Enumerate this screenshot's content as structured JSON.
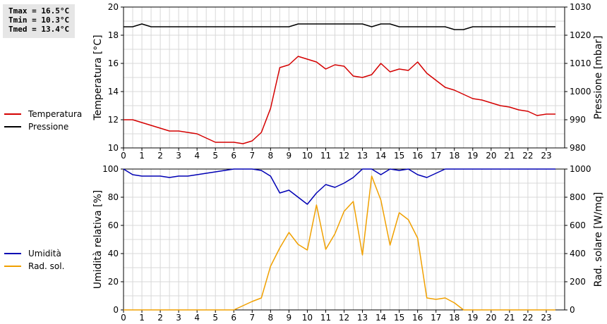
{
  "stats": {
    "tmax": "Tmax = 16.5°C",
    "tmin": "Tmin = 10.3°C",
    "tmed": "Tmed = 13.4°C"
  },
  "colors": {
    "temperature": "#d40000",
    "pressure": "#000000",
    "humidity": "#0000b4",
    "solar": "#f0a000",
    "grid": "#d8d8d8"
  },
  "chart_data": [
    {
      "type": "line",
      "xlim": [
        0,
        24
      ],
      "x_ticks": [
        "0",
        "1",
        "2",
        "3",
        "4",
        "5",
        "6",
        "7",
        "8",
        "9",
        "10",
        "11",
        "12",
        "13",
        "14",
        "15",
        "16",
        "17",
        "18",
        "19",
        "20",
        "21",
        "22",
        "23"
      ],
      "ylabel": "Temperatura [°C]",
      "ylim": [
        10,
        20
      ],
      "y_ticks": [
        "10",
        "12",
        "14",
        "16",
        "18",
        "20"
      ],
      "y2label": "Pressione [mbar]",
      "y2lim": [
        980,
        1030
      ],
      "y2_ticks": [
        "980",
        "990",
        "1000",
        "1010",
        "1020",
        "1030"
      ],
      "grid": true,
      "legend_position": "left",
      "series": [
        {
          "name": "Temperatura",
          "axis": "left",
          "x": [
            0,
            0.5,
            1,
            1.5,
            2,
            2.5,
            3,
            3.5,
            4,
            4.5,
            5,
            5.5,
            6,
            6.5,
            7,
            7.5,
            8,
            8.5,
            9,
            9.5,
            10,
            10.5,
            11,
            11.5,
            12,
            12.5,
            13,
            13.5,
            14,
            14.5,
            15,
            15.5,
            16,
            16.5,
            17,
            17.5,
            18,
            18.5,
            19,
            19.5,
            20,
            20.5,
            21,
            21.5,
            22,
            22.5,
            23,
            23.5
          ],
          "values": [
            12.0,
            12.0,
            11.8,
            11.6,
            11.4,
            11.2,
            11.2,
            11.1,
            11.0,
            10.7,
            10.4,
            10.4,
            10.4,
            10.3,
            10.5,
            11.1,
            12.8,
            15.7,
            15.9,
            16.5,
            16.3,
            16.1,
            15.6,
            15.9,
            15.8,
            15.1,
            15.0,
            15.2,
            16.0,
            15.4,
            15.6,
            15.5,
            16.1,
            15.3,
            14.8,
            14.3,
            14.1,
            13.8,
            13.5,
            13.4,
            13.2,
            13.0,
            12.9,
            12.7,
            12.6,
            12.3,
            12.4,
            12.4
          ]
        },
        {
          "name": "Pressione",
          "axis": "right",
          "x": [
            0,
            0.5,
            1,
            1.5,
            2,
            2.5,
            3,
            3.5,
            4,
            4.5,
            5,
            5.5,
            6,
            6.5,
            7,
            7.5,
            8,
            8.5,
            9,
            9.5,
            10,
            10.5,
            11,
            11.5,
            12,
            12.5,
            13,
            13.5,
            14,
            14.5,
            15,
            15.5,
            16,
            16.5,
            17,
            17.5,
            18,
            18.5,
            19,
            19.5,
            20,
            20.5,
            21,
            21.5,
            22,
            22.5,
            23,
            23.5
          ],
          "values": [
            1023,
            1023,
            1024,
            1023,
            1023,
            1023,
            1023,
            1023,
            1023,
            1023,
            1023,
            1023,
            1023,
            1023,
            1023,
            1023,
            1023,
            1023,
            1023,
            1024,
            1024,
            1024,
            1024,
            1024,
            1024,
            1024,
            1024,
            1023,
            1024,
            1024,
            1023,
            1023,
            1023,
            1023,
            1023,
            1023,
            1022,
            1022,
            1023,
            1023,
            1023,
            1023,
            1023,
            1023,
            1023,
            1023,
            1023,
            1023
          ]
        }
      ]
    },
    {
      "type": "line",
      "xlim": [
        0,
        24
      ],
      "x_ticks": [
        "0",
        "1",
        "2",
        "3",
        "4",
        "5",
        "6",
        "7",
        "8",
        "9",
        "10",
        "11",
        "12",
        "13",
        "14",
        "15",
        "16",
        "17",
        "18",
        "19",
        "20",
        "21",
        "22",
        "23"
      ],
      "ylabel": "Umidità relativa [%]",
      "ylim": [
        0,
        100
      ],
      "y_ticks": [
        "0",
        "20",
        "40",
        "60",
        "80",
        "100"
      ],
      "y2label": "Rad. solare [W/mq]",
      "y2lim": [
        0,
        1000
      ],
      "y2_ticks": [
        "0",
        "200",
        "400",
        "600",
        "800",
        "1000"
      ],
      "grid": true,
      "legend_position": "left",
      "series": [
        {
          "name": "Umidità",
          "axis": "left",
          "x": [
            0,
            0.5,
            1,
            1.5,
            2,
            2.5,
            3,
            3.5,
            4,
            4.5,
            5,
            5.5,
            6,
            6.5,
            7,
            7.5,
            8,
            8.5,
            9,
            9.5,
            10,
            10.5,
            11,
            11.5,
            12,
            12.5,
            13,
            13.5,
            14,
            14.5,
            15,
            15.5,
            16,
            16.5,
            17,
            17.5,
            18,
            18.5,
            19,
            19.5,
            20,
            20.5,
            21,
            21.5,
            22,
            22.5,
            23,
            23.5
          ],
          "values": [
            100,
            96,
            95,
            95,
            95,
            94,
            95,
            95,
            96,
            97,
            98,
            99,
            100,
            100,
            100,
            99,
            95,
            83,
            85,
            80,
            75,
            83,
            89,
            87,
            90,
            94,
            100,
            100,
            96,
            100,
            99,
            100,
            96,
            94,
            97,
            100,
            100,
            100,
            100,
            100,
            100,
            100,
            100,
            100,
            100,
            100,
            100,
            100
          ]
        },
        {
          "name": "Rad. sol.",
          "axis": "right",
          "x": [
            0,
            0.5,
            1,
            1.5,
            2,
            2.5,
            3,
            3.5,
            4,
            4.5,
            5,
            5.5,
            6,
            6.5,
            7,
            7.5,
            8,
            8.5,
            9,
            9.5,
            10,
            10.5,
            11,
            11.5,
            12,
            12.5,
            13,
            13.5,
            14,
            14.5,
            15,
            15.5,
            16,
            16.5,
            17,
            17.5,
            18,
            18.5,
            19,
            19.5,
            20,
            20.5,
            21,
            21.5,
            22,
            22.5,
            23,
            23.5
          ],
          "values": [
            0,
            0,
            0,
            0,
            0,
            0,
            0,
            0,
            0,
            0,
            0,
            0,
            0,
            30,
            60,
            85,
            310,
            440,
            550,
            465,
            425,
            745,
            430,
            540,
            700,
            770,
            390,
            950,
            780,
            460,
            690,
            640,
            510,
            85,
            75,
            85,
            50,
            0,
            0,
            0,
            0,
            0,
            0,
            0,
            0,
            0,
            0,
            0
          ]
        }
      ]
    }
  ]
}
